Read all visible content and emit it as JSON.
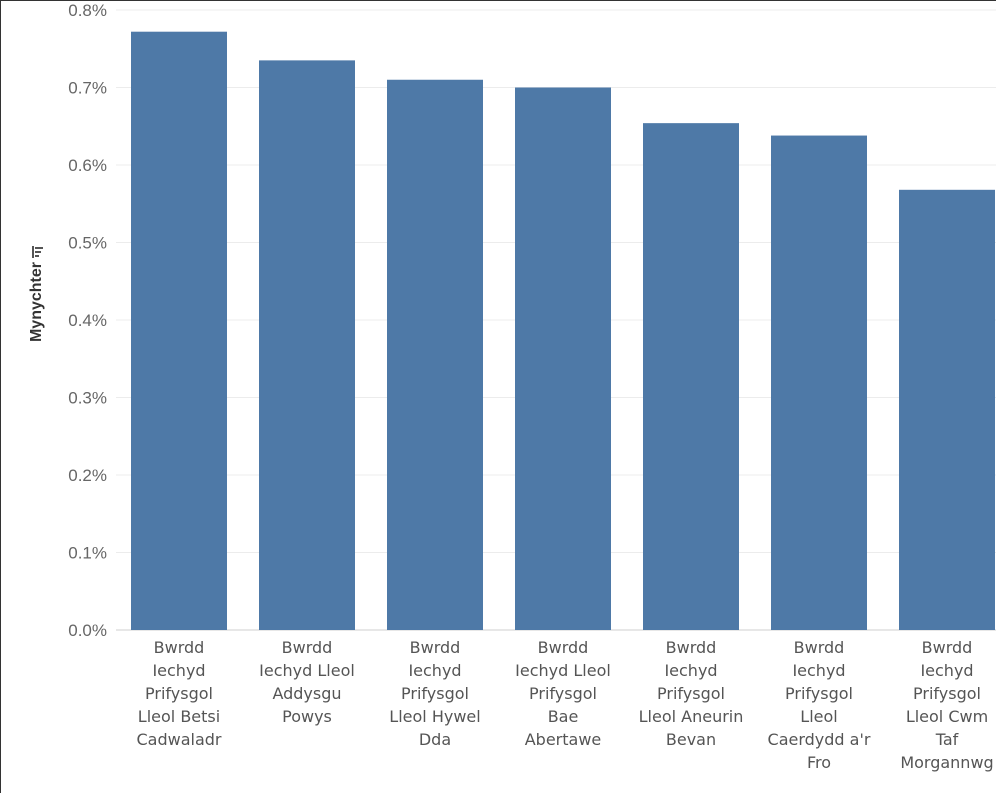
{
  "chart_data": {
    "type": "bar",
    "ylabel": "Mynychter",
    "ylabel_icon": "sort-descending-icon",
    "ylim": [
      0,
      0.8
    ],
    "yticks": [
      "0.0%",
      "0.1%",
      "0.2%",
      "0.3%",
      "0.4%",
      "0.5%",
      "0.6%",
      "0.7%",
      "0.8%"
    ],
    "bar_color": "#4e79a7",
    "grid": true,
    "categories": [
      [
        "Bwrdd",
        "Iechyd",
        "Prifysgol",
        "Lleol Betsi",
        "Cadwaladr"
      ],
      [
        "Bwrdd",
        "Iechyd Lleol",
        "Addysgu",
        "Powys"
      ],
      [
        "Bwrdd",
        "Iechyd",
        "Prifysgol",
        "Lleol Hywel",
        "Dda"
      ],
      [
        "Bwrdd",
        "Iechyd Lleol",
        "Prifysgol",
        "Bae",
        "Abertawe"
      ],
      [
        "Bwrdd",
        "Iechyd",
        "Prifysgol",
        "Lleol Aneurin",
        "Bevan"
      ],
      [
        "Bwrdd",
        "Iechyd",
        "Prifysgol",
        "Lleol",
        "Caerdydd a'r",
        "Fro"
      ],
      [
        "Bwrdd",
        "Iechyd",
        "Prifysgol",
        "Lleol Cwm",
        "Taf",
        "Morgannwg"
      ]
    ],
    "values": [
      0.772,
      0.735,
      0.71,
      0.7,
      0.654,
      0.638,
      0.568
    ]
  }
}
